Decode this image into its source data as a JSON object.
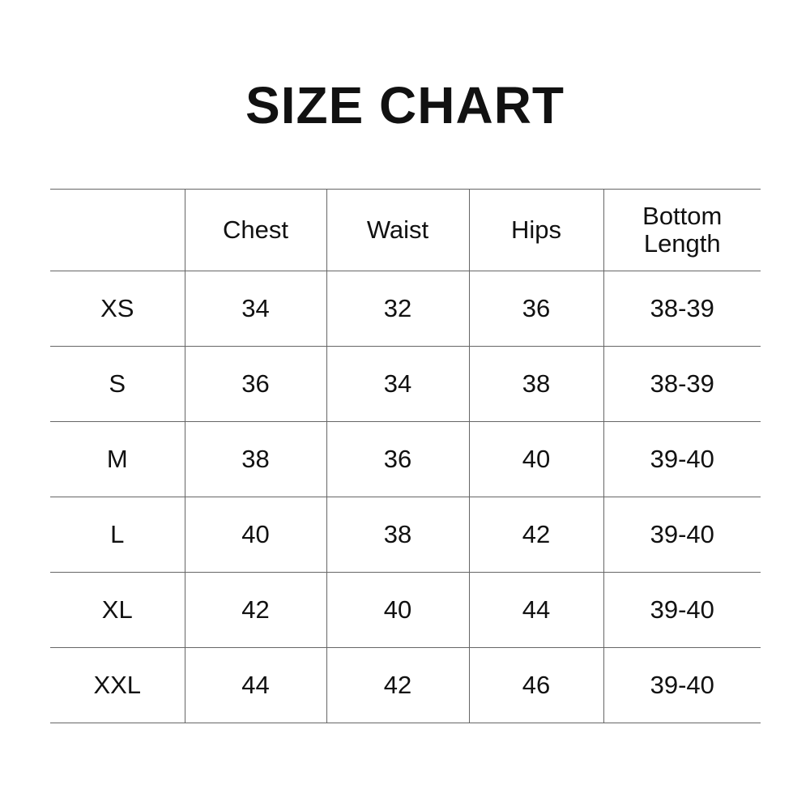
{
  "title": "SIZE CHART",
  "table": {
    "headers": [
      "",
      "Chest",
      "Waist",
      "Hips",
      "Bottom\nLength"
    ],
    "rows": [
      [
        "XS",
        "34",
        "32",
        "36",
        "38-39"
      ],
      [
        "S",
        "36",
        "34",
        "38",
        "38-39"
      ],
      [
        "M",
        "38",
        "36",
        "40",
        "39-40"
      ],
      [
        "L",
        "40",
        "38",
        "42",
        "39-40"
      ],
      [
        "XL",
        "42",
        "40",
        "44",
        "39-40"
      ],
      [
        "XXL",
        "44",
        "42",
        "46",
        "39-40"
      ]
    ]
  }
}
